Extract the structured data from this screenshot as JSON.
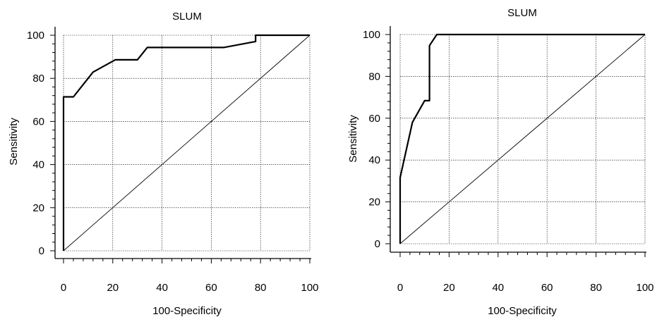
{
  "chart_data": [
    {
      "type": "line",
      "title": "SLUM",
      "xlabel": "100-Specificity",
      "ylabel": "Sensitivity",
      "xlim": [
        0,
        100
      ],
      "ylim": [
        0,
        100
      ],
      "xticks": [
        "0",
        "20",
        "40",
        "60",
        "80",
        "100"
      ],
      "yticks": [
        "0",
        "20",
        "40",
        "60",
        "80",
        "100"
      ],
      "grid": true,
      "series": [
        {
          "x": [
            0,
            0,
            4,
            12,
            21,
            30,
            34,
            65,
            78,
            78,
            100
          ],
          "y": [
            0,
            71.4,
            71.4,
            82.9,
            88.6,
            88.6,
            94.3,
            94.3,
            97.1,
            100,
            100
          ]
        },
        {
          "x": [
            0,
            100
          ],
          "y": [
            0,
            100
          ]
        }
      ]
    },
    {
      "type": "line",
      "title": "SLUM",
      "xlabel": "100-Specificity",
      "ylabel": "Sensitivity",
      "xlim": [
        0,
        100
      ],
      "ylim": [
        0,
        100
      ],
      "xticks": [
        "0",
        "20",
        "40",
        "60",
        "80",
        "100"
      ],
      "yticks": [
        "0",
        "20",
        "40",
        "60",
        "80",
        "100"
      ],
      "grid": true,
      "series": [
        {
          "x": [
            0,
            0,
            5,
            10,
            12,
            12,
            15,
            100
          ],
          "y": [
            0,
            31.6,
            58,
            68.4,
            68.4,
            94.7,
            100,
            100
          ]
        },
        {
          "x": [
            0,
            100
          ],
          "y": [
            0,
            100
          ]
        }
      ]
    }
  ]
}
